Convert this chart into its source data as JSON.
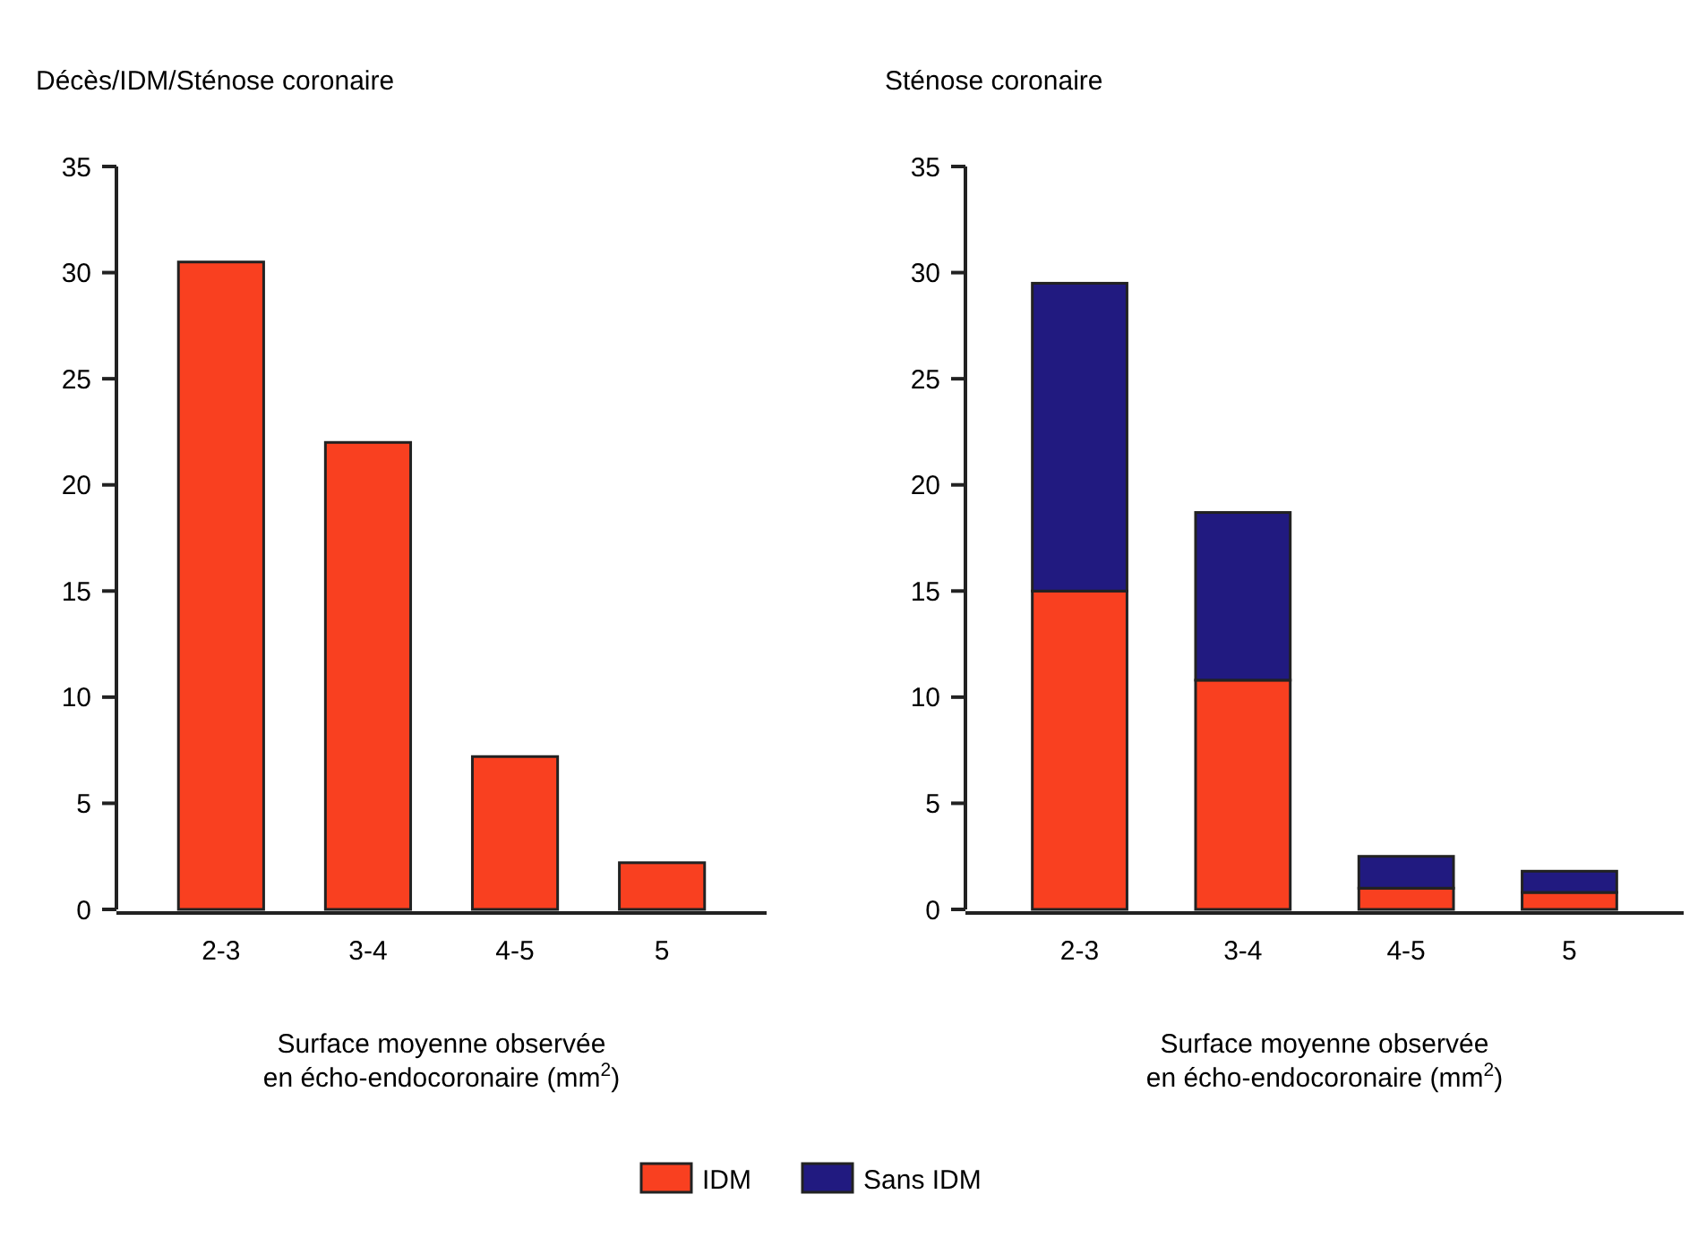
{
  "chart_data": [
    {
      "type": "bar",
      "title": "Décès/IDM/Sténose coronaire",
      "categories": [
        "2-3",
        "3-4",
        "4-5",
        "5"
      ],
      "values": [
        30.5,
        22,
        7.2,
        2.2
      ],
      "color": "#f94020",
      "xlabel": "Surface moyenne observée\nen écho-endocoronaire (mm$^{2}$)",
      "ylim": [
        0,
        35
      ],
      "yticks": [
        0,
        5,
        10,
        15,
        20,
        25,
        30,
        35
      ],
      "grid": false,
      "legend": false
    },
    {
      "type": "bar",
      "title": "Sténose coronaire",
      "categories": [
        "2-3",
        "3-4",
        "4-5",
        "5"
      ],
      "stacked": true,
      "series": [
        {
          "name": "IDM",
          "color": "#f94020",
          "values": [
            15,
            10.8,
            1,
            0.8
          ]
        },
        {
          "name": "Sans IDM",
          "color": "#211a80",
          "values": [
            14.5,
            7.9,
            1.5,
            1
          ]
        }
      ],
      "xlabel": "Surface moyenne observée\nen écho-endocoronaire (mm$^{2}$)",
      "ylim": [
        0,
        35
      ],
      "yticks": [
        0,
        5,
        10,
        15,
        20,
        25,
        30,
        35
      ],
      "grid": false,
      "legend": "bottom"
    }
  ]
}
